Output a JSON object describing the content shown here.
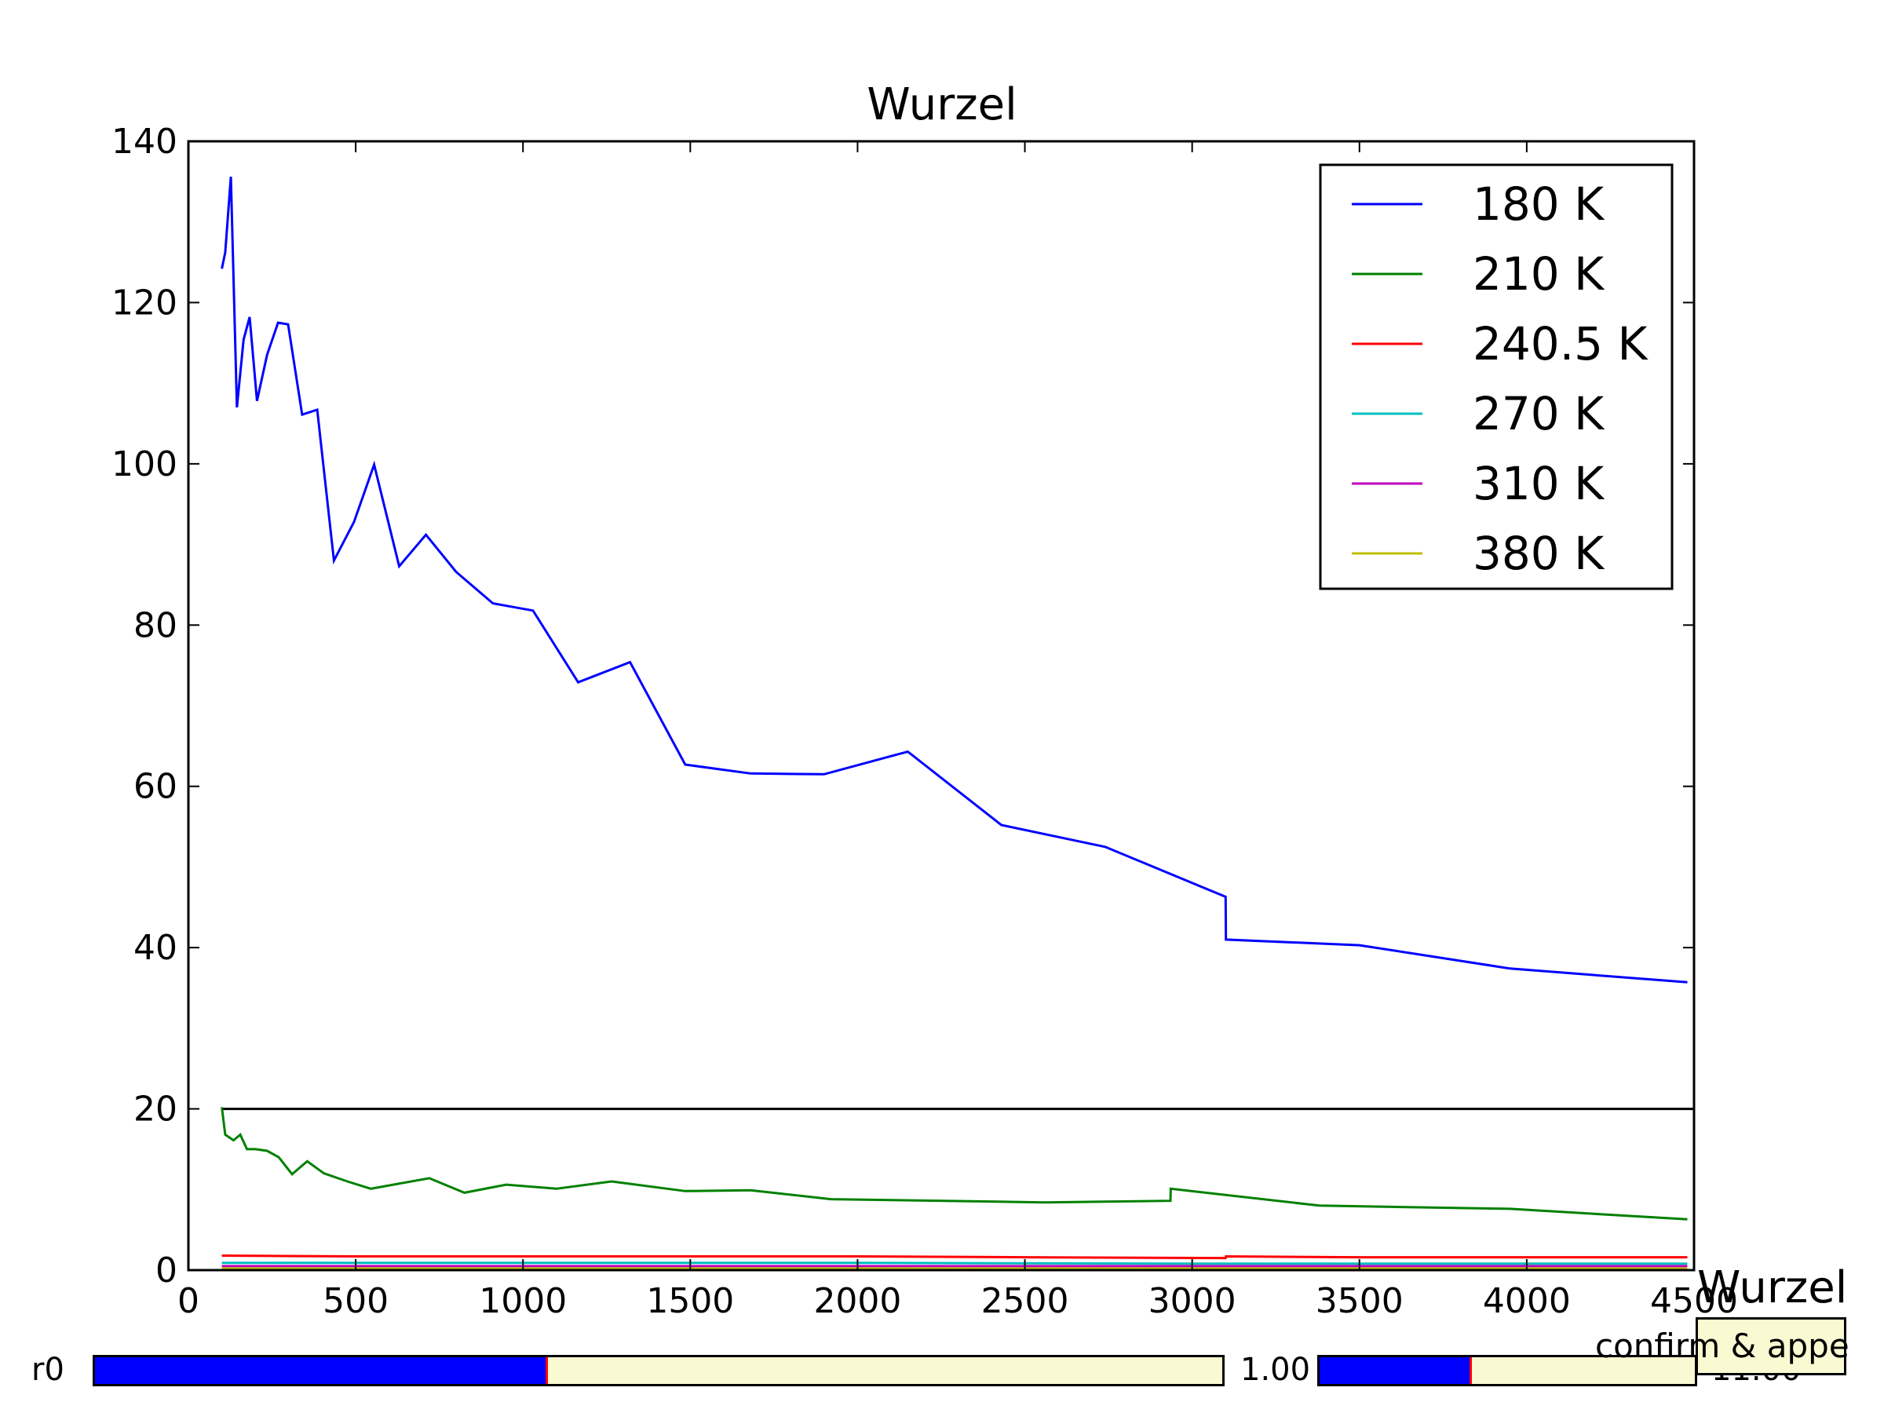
{
  "chart_data": {
    "type": "line",
    "title": "Wurzel",
    "xlabel": "",
    "ylabel": "",
    "xlim": [
      0,
      4500
    ],
    "ylim": [
      0,
      140
    ],
    "xticks": [
      0,
      500,
      1000,
      1500,
      2000,
      2500,
      3000,
      3500,
      4000,
      4500
    ],
    "yticks": [
      0,
      20,
      40,
      60,
      80,
      100,
      120,
      140
    ],
    "grid": false,
    "legend_position": "top-right",
    "reference_line": {
      "y": 20,
      "x_range": [
        100,
        4500
      ],
      "color": "#000000"
    },
    "series": [
      {
        "name": "180 K",
        "color": "#0000ff",
        "x": [
          100,
          110,
          127,
          145,
          165,
          183,
          205,
          235,
          268,
          298,
          340,
          385,
          435,
          495,
          555,
          630,
          710,
          800,
          910,
          1030,
          1165,
          1320,
          1485,
          1680,
          1900,
          2150,
          2430,
          2740,
          3100,
          3101,
          3500,
          3950,
          4480
        ],
        "y": [
          124.2,
          126.2,
          135.6,
          107.0,
          115.4,
          118.2,
          107.8,
          113.5,
          117.5,
          117.3,
          106.1,
          106.7,
          88.0,
          92.8,
          99.9,
          87.3,
          91.2,
          86.6,
          82.7,
          81.8,
          72.9,
          75.4,
          62.7,
          61.6,
          61.5,
          64.3,
          55.2,
          52.5,
          46.3,
          41.0,
          40.3,
          37.4,
          35.7
        ]
      },
      {
        "name": "210 K",
        "color": "#008000",
        "x": [
          100,
          110,
          135,
          155,
          175,
          200,
          235,
          270,
          310,
          355,
          405,
          475,
          545,
          720,
          825,
          950,
          1100,
          1265,
          1485,
          1680,
          1920,
          2560,
          2935,
          2936,
          3380,
          3950,
          4480
        ],
        "y": [
          20.2,
          16.8,
          16.1,
          16.8,
          15.0,
          15.0,
          14.8,
          14.0,
          11.9,
          13.5,
          12.0,
          11.0,
          10.1,
          11.4,
          9.6,
          10.6,
          10.1,
          11.0,
          9.8,
          9.9,
          8.8,
          8.4,
          8.6,
          10.1,
          8.0,
          7.6,
          6.3
        ]
      },
      {
        "name": "240.5 K",
        "color": "#ff0000",
        "x": [
          100,
          500,
          1000,
          1500,
          2000,
          2500,
          3100,
          3101,
          3500,
          4000,
          4480
        ],
        "y": [
          1.8,
          1.7,
          1.7,
          1.7,
          1.7,
          1.6,
          1.5,
          1.7,
          1.6,
          1.6,
          1.6
        ]
      },
      {
        "name": "270 K",
        "color": "#00bfbf",
        "x": [
          100,
          1000,
          2000,
          3000,
          4480
        ],
        "y": [
          0.9,
          0.9,
          0.9,
          0.8,
          0.8
        ]
      },
      {
        "name": "310 K",
        "color": "#bf00bf",
        "x": [
          100,
          1000,
          2000,
          3000,
          4480
        ],
        "y": [
          0.5,
          0.5,
          0.5,
          0.5,
          0.5
        ]
      },
      {
        "name": "380 K",
        "color": "#bfbf00",
        "x": [
          100,
          1000,
          2000,
          3000,
          4480
        ],
        "y": [
          0.2,
          0.2,
          0.2,
          0.2,
          0.2
        ]
      }
    ]
  },
  "widgets": {
    "slider_left": {
      "label": "r0",
      "value_text": "1.00",
      "fill_fraction": 0.4
    },
    "slider_right": {
      "label": "",
      "value_text": "11.00",
      "fill_fraction": 0.4
    },
    "overlay": {
      "title": "Wurzel",
      "button_label": "confirm & appe"
    }
  }
}
